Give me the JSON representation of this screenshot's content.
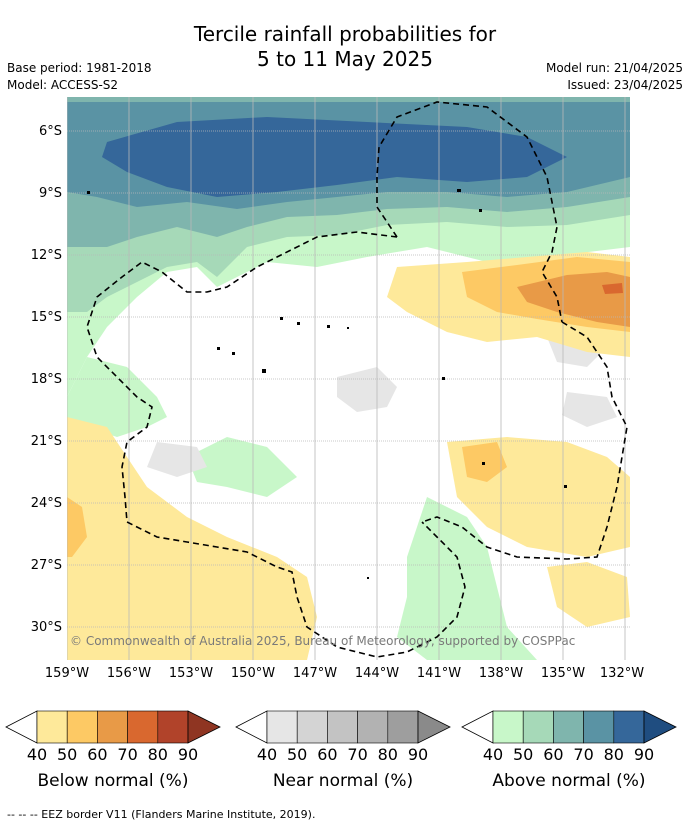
{
  "title": {
    "line1": "Tercile rainfall probabilities for",
    "line2": "5 to 11 May 2025"
  },
  "meta": {
    "base_period": "Base period: 1981-2018",
    "model": "Model: ACCESS-S2",
    "model_run": "Model run: 21/04/2025",
    "issued": "Issued: 23/04/2025"
  },
  "axes": {
    "lat_labels": [
      "6°S",
      "9°S",
      "12°S",
      "15°S",
      "18°S",
      "21°S",
      "24°S",
      "27°S",
      "30°S"
    ],
    "lon_labels": [
      "159°W",
      "156°W",
      "153°W",
      "150°W",
      "147°W",
      "144°W",
      "141°W",
      "138°W",
      "135°W",
      "132°W"
    ]
  },
  "copyright": "© Commonwealth of Australia 2025, Bureau of Meteorology, supported by COSPPac",
  "legend": {
    "ticks": [
      "40",
      "50",
      "60",
      "70",
      "80",
      "90"
    ],
    "groups": [
      {
        "title": "Below normal (%)",
        "colors": [
          "#fee99a",
          "#fdc964",
          "#e89a47",
          "#d9682f",
          "#b1432a",
          "#8f3522"
        ]
      },
      {
        "title": "Near normal (%)",
        "colors": [
          "#e6e6e6",
          "#d4d4d4",
          "#c3c3c3",
          "#b2b2b2",
          "#9e9e9e",
          "#8a8a8a"
        ]
      },
      {
        "title": "Above normal (%)",
        "colors": [
          "#c8f7c9",
          "#a6d9b8",
          "#7fb5ad",
          "#5a93a4",
          "#35679a",
          "#1f4d80"
        ]
      }
    ]
  },
  "footer": "--  --  -- EEZ border V11 (Flanders Marine Institute, 2019)."
}
